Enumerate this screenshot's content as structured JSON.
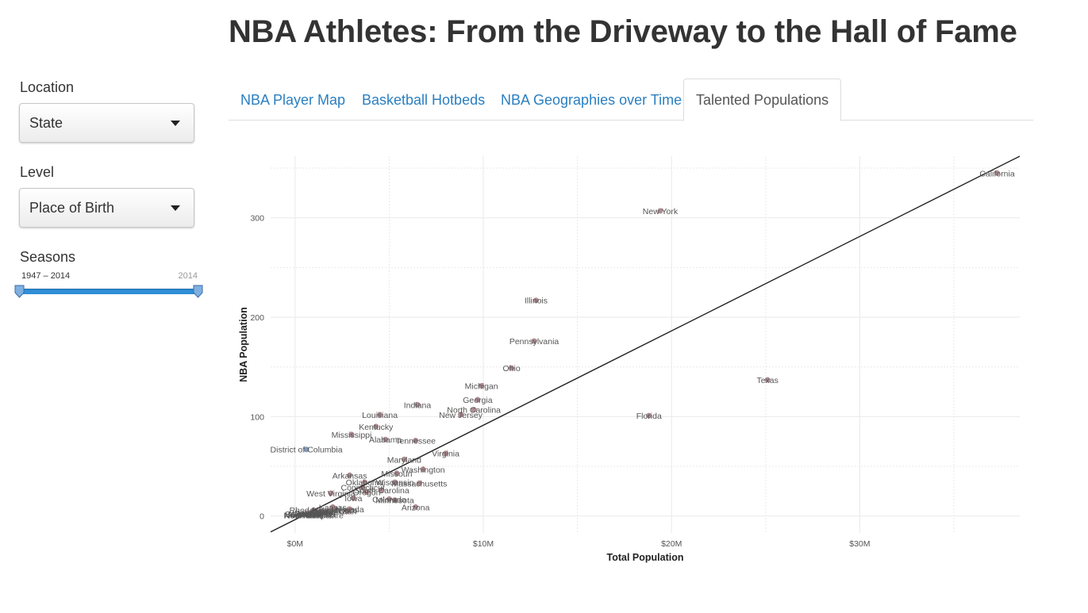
{
  "page": {
    "title": "NBA Athletes: From the Driveway to the Hall of Fame"
  },
  "sidebar": {
    "location": {
      "label": "Location",
      "value": "State"
    },
    "level": {
      "label": "Level",
      "value": "Place of Birth"
    },
    "seasons": {
      "label": "Seasons",
      "min_label": "1947 – 2014",
      "max_label": "2014",
      "range": [
        1947,
        2014
      ]
    }
  },
  "tabs": [
    {
      "label": "NBA Player Map",
      "active": false
    },
    {
      "label": "Basketball Hotbeds",
      "active": false
    },
    {
      "label": "NBA Geographies over Time",
      "active": false
    },
    {
      "label": "Talented Populations",
      "active": true
    }
  ],
  "chart_data": {
    "type": "scatter",
    "xlabel": "Total Population",
    "ylabel": "NBA Population",
    "xlim": [
      -1.3,
      38.5
    ],
    "ylim": [
      -17,
      362
    ],
    "x_ticks": [
      0,
      10,
      20,
      30
    ],
    "x_tick_labels": [
      "$0M",
      "$10M",
      "$20M",
      "$30M"
    ],
    "y_ticks": [
      0,
      100,
      200,
      300
    ],
    "y_tick_labels": [
      "0",
      "100",
      "200",
      "300"
    ],
    "grid": true,
    "trend_line": {
      "x": [
        -1.3,
        38.5
      ],
      "y": [
        -16,
        362
      ]
    },
    "colors": {
      "point": "#a1787f",
      "point_dc": "#6d86b3",
      "line": "#222222",
      "label": "#555555",
      "grid": "#e9e9e9"
    },
    "points": [
      {
        "x": 37.3,
        "y": 345,
        "label": "California"
      },
      {
        "x": 19.4,
        "y": 307,
        "label": "New York"
      },
      {
        "x": 12.8,
        "y": 217,
        "label": "Illinois"
      },
      {
        "x": 12.7,
        "y": 176,
        "label": "Pennsylvania"
      },
      {
        "x": 11.5,
        "y": 149,
        "label": "Ohio"
      },
      {
        "x": 9.9,
        "y": 131,
        "label": "Michigan"
      },
      {
        "x": 25.1,
        "y": 137,
        "label": "Texas"
      },
      {
        "x": 18.8,
        "y": 101,
        "label": "Florida"
      },
      {
        "x": 9.7,
        "y": 117,
        "label": "Georgia"
      },
      {
        "x": 9.5,
        "y": 107,
        "label": "North Carolina"
      },
      {
        "x": 8.8,
        "y": 102,
        "label": "New Jersey"
      },
      {
        "x": 6.5,
        "y": 112,
        "label": "Indiana"
      },
      {
        "x": 4.5,
        "y": 102,
        "label": "Louisiana"
      },
      {
        "x": 4.3,
        "y": 90,
        "label": "Kentucky"
      },
      {
        "x": 3.0,
        "y": 82,
        "label": "Mississippi"
      },
      {
        "x": 4.8,
        "y": 77,
        "label": "Alabama"
      },
      {
        "x": 6.4,
        "y": 76,
        "label": "Tennessee"
      },
      {
        "x": 8.0,
        "y": 63,
        "label": "Virginia"
      },
      {
        "x": 5.8,
        "y": 57,
        "label": "Maryland"
      },
      {
        "x": 6.8,
        "y": 47,
        "label": "Washington"
      },
      {
        "x": 5.4,
        "y": 43,
        "label": "Missouri"
      },
      {
        "x": 6.6,
        "y": 33,
        "label": "Massachusetts"
      },
      {
        "x": 5.3,
        "y": 34,
        "label": "Wisconsin"
      },
      {
        "x": 2.9,
        "y": 41,
        "label": "Arkansas"
      },
      {
        "x": 3.7,
        "y": 34,
        "label": "Oklahoma"
      },
      {
        "x": 4.6,
        "y": 26,
        "label": "South Carolina"
      },
      {
        "x": 3.8,
        "y": 24,
        "label": "Oregon"
      },
      {
        "x": 1.9,
        "y": 23,
        "label": "West Virginia"
      },
      {
        "x": 3.1,
        "y": 18,
        "label": "Iowa"
      },
      {
        "x": 5.0,
        "y": 17,
        "label": "Colorado"
      },
      {
        "x": 6.4,
        "y": 9,
        "label": "Arizona"
      },
      {
        "x": 0.6,
        "y": 67,
        "label": "District of Columbia"
      },
      {
        "x": 2.9,
        "y": 7,
        "label": "Nevada"
      },
      {
        "x": 1.8,
        "y": 5,
        "label": "Nebraska"
      },
      {
        "x": 1.3,
        "y": 4,
        "label": "Hawaii"
      },
      {
        "x": 1.4,
        "y": 3,
        "label": "Maine"
      },
      {
        "x": 1.0,
        "y": 1,
        "label": "New Hampshire"
      },
      {
        "x": 0.8,
        "y": 2,
        "label": "South Dakota"
      },
      {
        "x": 0.7,
        "y": 1,
        "label": "North Dakota"
      },
      {
        "x": 0.6,
        "y": 1,
        "label": "Vermont"
      },
      {
        "x": 0.6,
        "y": 2,
        "label": "Wyoming"
      },
      {
        "x": 0.7,
        "y": 3,
        "label": "Alaska"
      },
      {
        "x": 1.0,
        "y": 6,
        "label": "Rhode Island"
      },
      {
        "x": 0.9,
        "y": 3,
        "label": "Delaware"
      },
      {
        "x": 1.6,
        "y": 4,
        "label": "Idaho"
      },
      {
        "x": 1.0,
        "y": 2,
        "label": "Montana"
      },
      {
        "x": 2.0,
        "y": 9,
        "label": "Kansas"
      },
      {
        "x": 2.8,
        "y": 5,
        "label": "Utah"
      },
      {
        "x": 2.1,
        "y": 6,
        "label": "New Mexico"
      },
      {
        "x": 3.6,
        "y": 29,
        "label": "Connecticut"
      },
      {
        "x": 5.3,
        "y": 16,
        "label": "Minnesota"
      }
    ]
  }
}
